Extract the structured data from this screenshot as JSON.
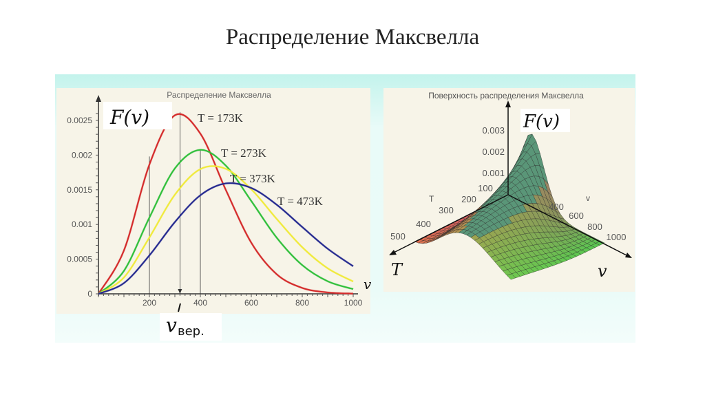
{
  "slide": {
    "title": "Распределение Максвелла"
  },
  "chart_data": [
    {
      "type": "line",
      "title": "Распределение Максвелла",
      "ylabel": "F(v)",
      "xlabel": "v",
      "xlim": [
        0,
        1000
      ],
      "ylim": [
        0,
        0.0027
      ],
      "x_ticks": [
        "200",
        "400",
        "600",
        "800",
        "1000"
      ],
      "y_ticks": [
        "0",
        "0.0005",
        "0.001",
        "0.0015",
        "0.002",
        "0.0025"
      ],
      "grid": false,
      "x": [
        0,
        100,
        200,
        300,
        400,
        500,
        600,
        700,
        800,
        900,
        1000
      ],
      "series": [
        {
          "name": "T = 173K",
          "color": "#d42a2a",
          "values": [
            0,
            0.000625,
            0.001864,
            0.002574,
            0.00231,
            0.001498,
            0.000737,
            0.000282,
            8.53e-05,
            2.05e-05,
            4e-06
          ]
        },
        {
          "name": "T = 273K",
          "color": "#2fbf3a",
          "values": [
            0,
            0.000331,
            0.001099,
            0.001808,
            0.002076,
            0.001848,
            0.001338,
            0.000808,
            0.000414,
            0.000181,
            6.83e-05
          ]
        },
        {
          "name": "T = 373K",
          "color": "#f0ea3a",
          "values": [
            0,
            0.000236,
            0.000813,
            0.001429,
            0.001798,
            0.001802,
            0.001507,
            0.001079,
            0.000672,
            0.000368,
            0.000178
          ]
        },
        {
          "name": "T = 473K",
          "color": "#23288f",
          "values": [
            0,
            0.000155,
            0.000554,
            0.001035,
            0.001421,
            0.001592,
            0.001526,
            0.001284,
            0.000963,
            0.00065,
            0.000398
          ]
        }
      ],
      "vertical_lines": [
        200,
        320,
        400
      ],
      "annotation": {
        "label": "v",
        "subscript": "вер.",
        "at": 320
      }
    },
    {
      "type": "surface",
      "title": "Поверхность распределения Максвелла",
      "zlabel": "F(v)",
      "xlabel": "T",
      "ylabel": "v",
      "z_ticks": [
        "0.001",
        "0.002",
        "0.003"
      ],
      "T_ticks": [
        "100",
        "200",
        "300",
        "400",
        "500"
      ],
      "v_ticks": [
        "400",
        "600",
        "800",
        "1000"
      ],
      "T_axis_small": "T",
      "v_axis_small": "v",
      "T_range": [
        100,
        500
      ],
      "v_range": [
        0,
        1000
      ]
    }
  ]
}
